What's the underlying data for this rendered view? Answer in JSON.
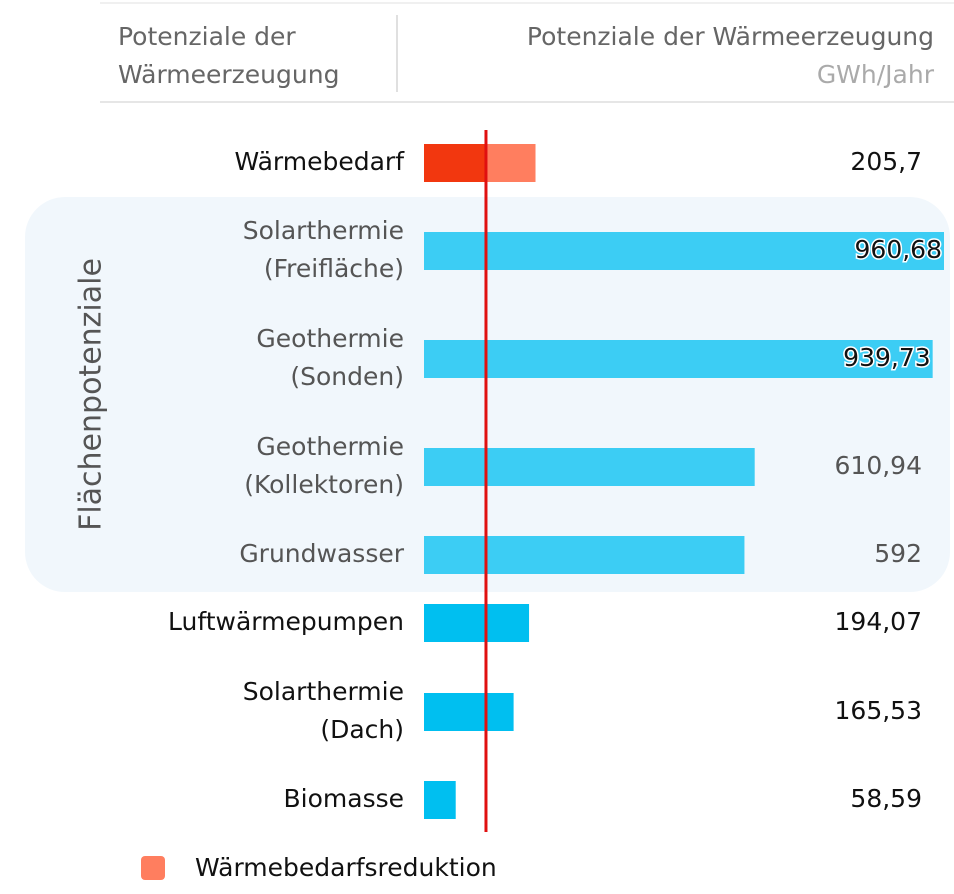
{
  "header": {
    "left": [
      "Potenziale der",
      "Wärmeerzeugung"
    ],
    "right": "Potenziale der Wärmeerzeugung",
    "unit": "GWh/Jahr"
  },
  "chart_data": {
    "type": "bar",
    "orientation": "horizontal",
    "categories": [
      [
        "Wärmebedarf"
      ],
      [
        "Solarthermie",
        "(Freifläche)"
      ],
      [
        "Geothermie",
        "(Sonden)"
      ],
      [
        "Geothermie",
        "(Kollektoren)"
      ],
      [
        "Grundwasser"
      ],
      [
        "Luftwärmepumpen"
      ],
      [
        "Solarthermie",
        "(Dach)"
      ],
      [
        "Biomasse"
      ]
    ],
    "values": [
      205.7,
      960.68,
      939.73,
      610.94,
      592,
      194.07,
      165.53,
      58.59
    ],
    "value_labels": [
      "205,7",
      "960,68",
      "939,73",
      "610,94",
      "592",
      "194,07",
      "165,53",
      "58,59"
    ],
    "colors": [
      "#f2370f",
      "#3ccdf4",
      "#3ccdf4",
      "#3ccdf4",
      "#3ccdf4",
      "#00bff0",
      "#00bff0",
      "#00bff0"
    ],
    "reduction": {
      "name": "Wärmebedarfsreduktion",
      "value": 91.2,
      "color": "#ff7e5f"
    },
    "reference_line": {
      "value": 114.5,
      "color": "#e01010"
    },
    "highlight": {
      "label": "Flächenpotenziale",
      "indices": [
        1,
        2,
        3,
        4
      ]
    },
    "xlim": [
      0,
      960.68
    ]
  }
}
